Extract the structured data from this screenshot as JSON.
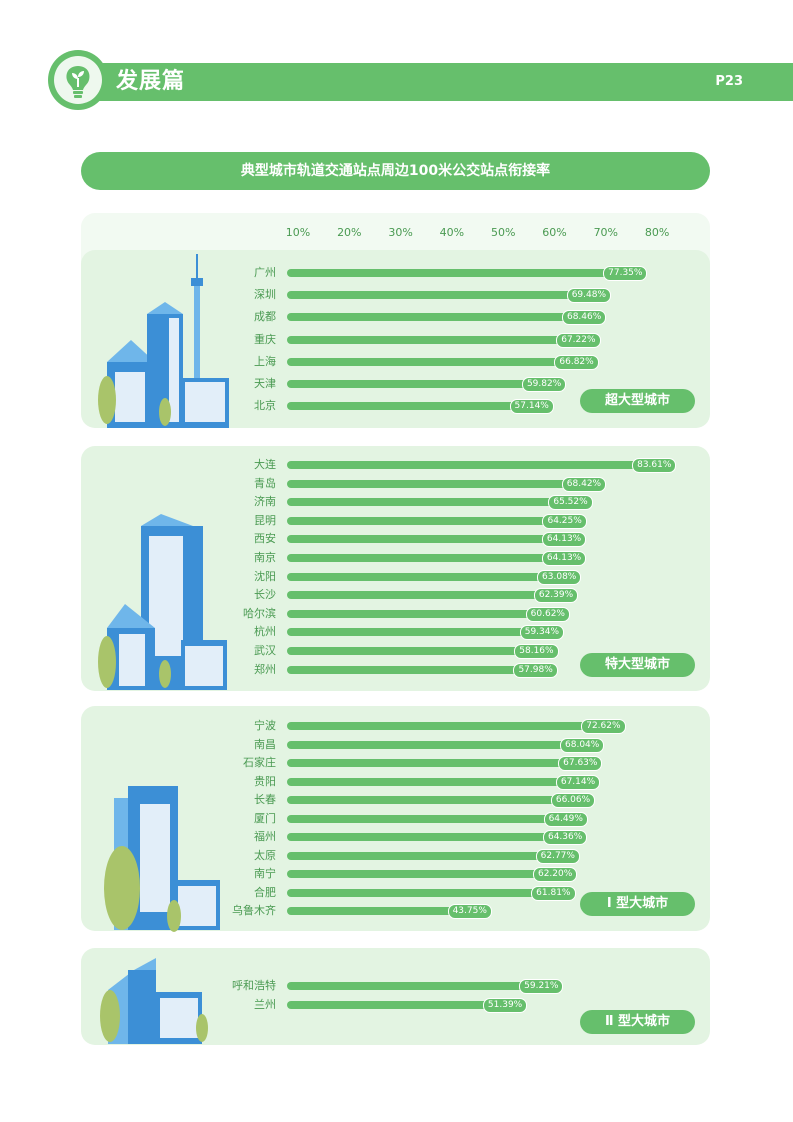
{
  "header": {
    "section_title": "发展篇",
    "page_number": "P23",
    "logo_icon": "lightbulb-sprout-icon"
  },
  "colors": {
    "accent": "#66bf6c",
    "panel": "#e3f4e2",
    "axis_panel": "#f2faf2",
    "label": "#4a9a52",
    "building_dark": "#3c8fd6",
    "building_light": "#6fb6ea",
    "tree": "#a9c46a"
  },
  "chart_data": {
    "type": "bar",
    "orientation": "horizontal",
    "title": "典型城市轨道交通站点周边100米公交站点衔接率",
    "x_ticks": [
      "10%",
      "20%",
      "30%",
      "40%",
      "50%",
      "60%",
      "70%",
      "80%"
    ],
    "x_range": [
      10,
      80
    ],
    "unit": "%",
    "groups": [
      {
        "category": "超大型城市",
        "items": [
          {
            "city": "广州",
            "value": 77.35,
            "label": "77.35%"
          },
          {
            "city": "深圳",
            "value": 69.48,
            "label": "69.48%"
          },
          {
            "city": "成都",
            "value": 68.46,
            "label": "68.46%"
          },
          {
            "city": "重庆",
            "value": 67.22,
            "label": "67.22%"
          },
          {
            "city": "上海",
            "value": 66.82,
            "label": "66.82%"
          },
          {
            "city": "天津",
            "value": 59.82,
            "label": "59.82%"
          },
          {
            "city": "北京",
            "value": 57.14,
            "label": "57.14%"
          }
        ]
      },
      {
        "category": "特大型城市",
        "items": [
          {
            "city": "大连",
            "value": 83.61,
            "label": "83.61%"
          },
          {
            "city": "青岛",
            "value": 68.42,
            "label": "68.42%"
          },
          {
            "city": "济南",
            "value": 65.52,
            "label": "65.52%"
          },
          {
            "city": "昆明",
            "value": 64.25,
            "label": "64.25%"
          },
          {
            "city": "西安",
            "value": 64.13,
            "label": "64.13%"
          },
          {
            "city": "南京",
            "value": 64.13,
            "label": "64.13%"
          },
          {
            "city": "沈阳",
            "value": 63.08,
            "label": "63.08%"
          },
          {
            "city": "长沙",
            "value": 62.39,
            "label": "62.39%"
          },
          {
            "city": "哈尔滨",
            "value": 60.62,
            "label": "60.62%"
          },
          {
            "city": "杭州",
            "value": 59.34,
            "label": "59.34%"
          },
          {
            "city": "武汉",
            "value": 58.16,
            "label": "58.16%"
          },
          {
            "city": "郑州",
            "value": 57.98,
            "label": "57.98%"
          }
        ]
      },
      {
        "category": "Ⅰ 型大城市",
        "items": [
          {
            "city": "宁波",
            "value": 72.62,
            "label": "72.62%"
          },
          {
            "city": "南昌",
            "value": 68.04,
            "label": "68.04%"
          },
          {
            "city": "石家庄",
            "value": 67.63,
            "label": "67.63%"
          },
          {
            "city": "贵阳",
            "value": 67.14,
            "label": "67.14%"
          },
          {
            "city": "长春",
            "value": 66.06,
            "label": "66.06%"
          },
          {
            "city": "厦门",
            "value": 64.49,
            "label": "64.49%"
          },
          {
            "city": "福州",
            "value": 64.36,
            "label": "64.36%"
          },
          {
            "city": "太原",
            "value": 62.77,
            "label": "62.77%"
          },
          {
            "city": "南宁",
            "value": 62.2,
            "label": "62.20%"
          },
          {
            "city": "合肥",
            "value": 61.81,
            "label": "61.81%"
          },
          {
            "city": "乌鲁木齐",
            "value": 43.75,
            "label": "43.75%"
          }
        ]
      },
      {
        "category": "Ⅱ 型大城市",
        "items": [
          {
            "city": "呼和浩特",
            "value": 59.21,
            "label": "59.21%"
          },
          {
            "city": "兰州",
            "value": 51.39,
            "label": "51.39%"
          }
        ]
      }
    ]
  }
}
